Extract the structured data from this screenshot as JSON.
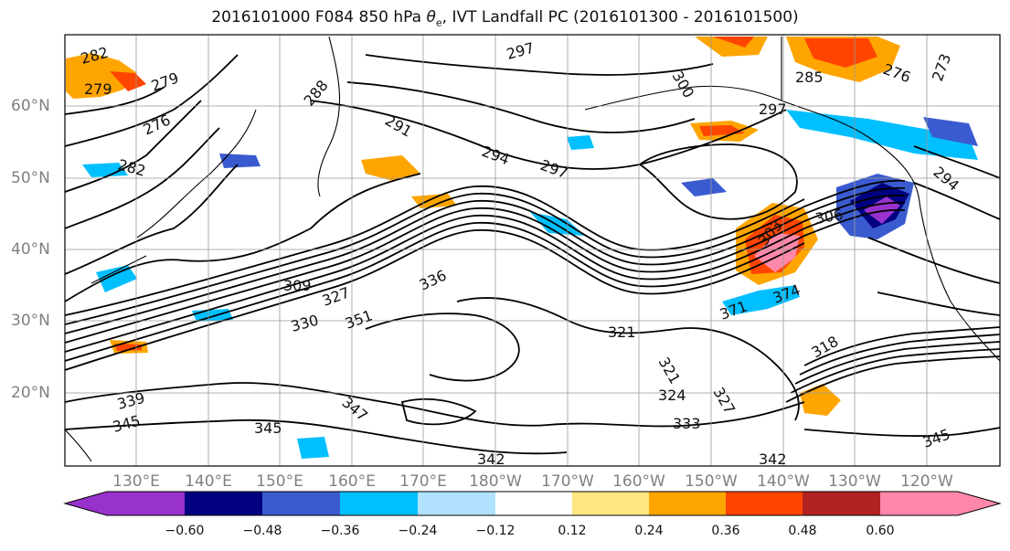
{
  "title": {
    "run": "2016101000 F084 850 hPa ",
    "symbol": "θ",
    "symbol_sub": "e",
    "rest": ", IVT Landfall PC (2016101300 - 2016101500)"
  },
  "map": {
    "lat_labels": [
      "60°N",
      "50°N",
      "40°N",
      "30°N",
      "20°N"
    ],
    "lon_labels": [
      "130°E",
      "140°E",
      "150°E",
      "160°E",
      "170°E",
      "180°W",
      "170°W",
      "160°W",
      "150°W",
      "140°W",
      "130°W",
      "120°W"
    ],
    "gridlines": true,
    "contour_labels": [
      "282",
      "279",
      "279",
      "276",
      "288",
      "291",
      "294",
      "297",
      "297",
      "300",
      "285",
      "276",
      "273",
      "282",
      "297",
      "294",
      "306",
      "303",
      "309",
      "321",
      "336",
      "330",
      "327",
      "351",
      "321",
      "324",
      "327",
      "318",
      "339",
      "345",
      "345",
      "347",
      "333",
      "342",
      "342",
      "345",
      "371",
      "374"
    ]
  },
  "colorbar": {
    "ticks": [
      "−0.60",
      "−0.48",
      "−0.36",
      "−0.24",
      "−0.12",
      "0.12",
      "0.24",
      "0.36",
      "0.48",
      "0.60"
    ],
    "colors": [
      "#9932CC",
      "#000080",
      "#3A5BD0",
      "#00BFFF",
      "#B0E2FF",
      "#FFFFFF",
      "#FFE680",
      "#FFA500",
      "#FF4500",
      "#B22222",
      "#FF88AA"
    ]
  }
}
